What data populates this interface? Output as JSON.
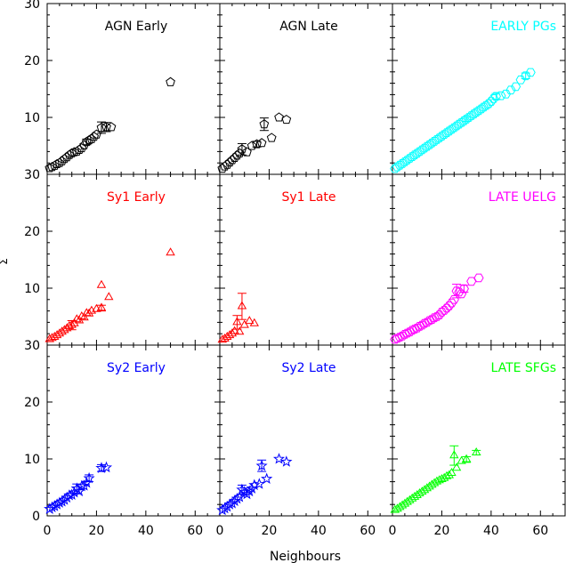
{
  "chart_data": {
    "type": "scatter",
    "layout": "3x3 grid of panels with shared axes",
    "xlabel": "Neighbours",
    "ylabel": "Σ",
    "xlim": [
      0,
      70
    ],
    "ylim": [
      0,
      30
    ],
    "xticks": [
      0,
      20,
      40,
      60
    ],
    "yticks": [
      0,
      10,
      20,
      30
    ],
    "grid": false,
    "panels": [
      {
        "label": "AGN Early",
        "color": "#000000",
        "marker": "pentagon",
        "label_align": "center",
        "points": [
          [
            1,
            1.1
          ],
          [
            2,
            1.3
          ],
          [
            3,
            1.5
          ],
          [
            4,
            1.8
          ],
          [
            5,
            2.0
          ],
          [
            6,
            2.3
          ],
          [
            7,
            2.7
          ],
          [
            8,
            3.0
          ],
          [
            9,
            3.4
          ],
          [
            10,
            3.7
          ],
          [
            11,
            3.9
          ],
          [
            12,
            4.0
          ],
          [
            13,
            4.3
          ],
          [
            14,
            4.6
          ],
          [
            15,
            5.1
          ],
          [
            16,
            5.7
          ],
          [
            17,
            6.0
          ],
          [
            18,
            6.2
          ],
          [
            19,
            6.6
          ],
          [
            20,
            7.0
          ],
          [
            22,
            8.2
          ],
          [
            24,
            8.3
          ],
          [
            26,
            8.3
          ],
          [
            50,
            16.2
          ]
        ],
        "errorbars": [
          [
            22,
            8.2,
            1.0
          ],
          [
            24,
            8.3,
            0.8
          ],
          [
            16,
            5.7,
            0.5
          ]
        ]
      },
      {
        "label": "AGN Late",
        "color": "#000000",
        "marker": "pentagon",
        "label_align": "center",
        "points": [
          [
            1,
            1.0
          ],
          [
            2,
            1.4
          ],
          [
            3,
            1.7
          ],
          [
            4,
            2.1
          ],
          [
            5,
            2.5
          ],
          [
            6,
            2.9
          ],
          [
            7,
            3.3
          ],
          [
            8,
            3.7
          ],
          [
            9,
            4.4
          ],
          [
            11,
            3.9
          ],
          [
            13,
            5.0
          ],
          [
            15,
            5.3
          ],
          [
            17,
            5.5
          ],
          [
            18,
            8.8
          ],
          [
            21,
            6.4
          ],
          [
            24,
            10.0
          ],
          [
            27,
            9.6
          ]
        ],
        "errorbars": [
          [
            9,
            4.4,
            1.0
          ],
          [
            18,
            8.8,
            1.1
          ],
          [
            15,
            5.3,
            0.5
          ]
        ]
      },
      {
        "label": "EARLY PGs",
        "color": "#00ffff",
        "marker": "hexagon",
        "label_align": "right",
        "points": [
          [
            1,
            1
          ],
          [
            2,
            1.3
          ],
          [
            3,
            1.6
          ],
          [
            4,
            1.9
          ],
          [
            5,
            2.2
          ],
          [
            6,
            2.5
          ],
          [
            7,
            2.8
          ],
          [
            8,
            3.1
          ],
          [
            9,
            3.4
          ],
          [
            10,
            3.7
          ],
          [
            11,
            4.0
          ],
          [
            12,
            4.3
          ],
          [
            13,
            4.6
          ],
          [
            14,
            4.9
          ],
          [
            15,
            5.2
          ],
          [
            16,
            5.5
          ],
          [
            17,
            5.8
          ],
          [
            18,
            6.1
          ],
          [
            19,
            6.4
          ],
          [
            20,
            6.7
          ],
          [
            21,
            7.0
          ],
          [
            22,
            7.3
          ],
          [
            23,
            7.6
          ],
          [
            24,
            7.9
          ],
          [
            25,
            8.2
          ],
          [
            26,
            8.5
          ],
          [
            27,
            8.8
          ],
          [
            28,
            9.1
          ],
          [
            29,
            9.4
          ],
          [
            30,
            9.7
          ],
          [
            31,
            10.0
          ],
          [
            32,
            10.3
          ],
          [
            33,
            10.6
          ],
          [
            34,
            10.9
          ],
          [
            35,
            11.2
          ],
          [
            36,
            11.5
          ],
          [
            37,
            11.8
          ],
          [
            38,
            12.1
          ],
          [
            39,
            12.4
          ],
          [
            40,
            12.8
          ],
          [
            41,
            13.3
          ],
          [
            42,
            13.7
          ],
          [
            44,
            13.8
          ],
          [
            46,
            14.1
          ],
          [
            48,
            14.8
          ],
          [
            50,
            15.4
          ],
          [
            52,
            16.6
          ],
          [
            54,
            17.3
          ],
          [
            56,
            17.9
          ]
        ],
        "errorbars": [
          [
            42,
            13.7,
            0.5
          ],
          [
            54,
            17.3,
            0.5
          ],
          [
            30,
            9.7,
            0.4
          ]
        ]
      },
      {
        "label": "Sy1 Early",
        "color": "#ff0000",
        "marker": "triangle",
        "label_align": "center",
        "points": [
          [
            1,
            1.0
          ],
          [
            2,
            1.2
          ],
          [
            3,
            1.4
          ],
          [
            4,
            1.7
          ],
          [
            5,
            2.0
          ],
          [
            6,
            2.3
          ],
          [
            7,
            2.6
          ],
          [
            8,
            2.9
          ],
          [
            9,
            3.3
          ],
          [
            10,
            3.5
          ],
          [
            11,
            3.8
          ],
          [
            12,
            4.5
          ],
          [
            13,
            4.3
          ],
          [
            14,
            5.0
          ],
          [
            15,
            4.8
          ],
          [
            16,
            5.6
          ],
          [
            17,
            5.5
          ],
          [
            18,
            6.0
          ],
          [
            20,
            6.3
          ],
          [
            22,
            10.5
          ],
          [
            22,
            6.5
          ],
          [
            25,
            8.4
          ],
          [
            50,
            16.2
          ]
        ],
        "errorbars": [
          [
            10,
            3.5,
            0.8
          ],
          [
            22,
            6.5,
            0.5
          ]
        ]
      },
      {
        "label": "Sy1 Late",
        "color": "#ff0000",
        "marker": "triangle",
        "label_align": "center",
        "points": [
          [
            1,
            0.9
          ],
          [
            2,
            1.1
          ],
          [
            3,
            1.4
          ],
          [
            4,
            1.7
          ],
          [
            5,
            2.0
          ],
          [
            6,
            2.4
          ],
          [
            7,
            4.0
          ],
          [
            8,
            2.3
          ],
          [
            9,
            6.8
          ],
          [
            10,
            3.5
          ],
          [
            12,
            4.2
          ],
          [
            14,
            3.8
          ]
        ],
        "errorbars": [
          [
            9,
            6.8,
            2.3
          ],
          [
            7,
            4.0,
            1.2
          ]
        ]
      },
      {
        "label": "LATE UELG",
        "color": "#ff00ff",
        "marker": "hexagon",
        "label_align": "right",
        "points": [
          [
            1,
            1
          ],
          [
            2,
            1.2
          ],
          [
            3,
            1.4
          ],
          [
            4,
            1.6
          ],
          [
            5,
            1.9
          ],
          [
            6,
            2.1
          ],
          [
            7,
            2.3
          ],
          [
            8,
            2.6
          ],
          [
            9,
            2.8
          ],
          [
            10,
            3.0
          ],
          [
            11,
            3.3
          ],
          [
            12,
            3.5
          ],
          [
            13,
            3.8
          ],
          [
            14,
            4.0
          ],
          [
            15,
            4.3
          ],
          [
            16,
            4.5
          ],
          [
            17,
            4.8
          ],
          [
            18,
            5.0
          ],
          [
            19,
            5.3
          ],
          [
            20,
            5.8
          ],
          [
            21,
            6.1
          ],
          [
            22,
            6.5
          ],
          [
            23,
            6.9
          ],
          [
            24,
            7.4
          ],
          [
            25,
            8.0
          ],
          [
            26,
            9.5
          ],
          [
            27,
            9.3
          ],
          [
            28,
            9.0
          ],
          [
            29,
            9.9
          ],
          [
            32,
            11.2
          ],
          [
            35,
            11.8
          ]
        ],
        "errorbars": [
          [
            26,
            9.5,
            1.2
          ],
          [
            29,
            9.9,
            0.6
          ]
        ]
      },
      {
        "label": "Sy2 Early",
        "color": "#0000ff",
        "marker": "star",
        "label_align": "center",
        "points": [
          [
            1,
            1.2
          ],
          [
            2,
            1.5
          ],
          [
            3,
            1.7
          ],
          [
            4,
            2.0
          ],
          [
            5,
            2.3
          ],
          [
            6,
            2.5
          ],
          [
            7,
            2.8
          ],
          [
            8,
            3.2
          ],
          [
            9,
            3.6
          ],
          [
            10,
            3.7
          ],
          [
            11,
            4.1
          ],
          [
            12,
            4.8
          ],
          [
            13,
            4.3
          ],
          [
            14,
            5.2
          ],
          [
            15,
            5.3
          ],
          [
            16,
            5.8
          ],
          [
            17,
            6.6
          ],
          [
            22,
            8.4
          ],
          [
            24,
            8.5
          ]
        ],
        "errorbars": [
          [
            12,
            4.8,
            0.8
          ],
          [
            17,
            6.6,
            0.6
          ],
          [
            22,
            8.4,
            0.6
          ]
        ]
      },
      {
        "label": "Sy2 Late",
        "color": "#0000ff",
        "marker": "star",
        "label_align": "center",
        "points": [
          [
            1,
            1.0
          ],
          [
            2,
            1.3
          ],
          [
            3,
            1.6
          ],
          [
            4,
            2.0
          ],
          [
            5,
            2.2
          ],
          [
            6,
            2.6
          ],
          [
            7,
            3.0
          ],
          [
            8,
            3.3
          ],
          [
            9,
            4.6
          ],
          [
            10,
            4.2
          ],
          [
            11,
            3.8
          ],
          [
            12,
            4.3
          ],
          [
            13,
            4.8
          ],
          [
            14,
            5.4
          ],
          [
            16,
            5.6
          ],
          [
            17,
            8.8
          ],
          [
            19,
            6.5
          ],
          [
            24,
            10.0
          ],
          [
            27,
            9.5
          ]
        ],
        "errorbars": [
          [
            17,
            8.8,
            1.0
          ],
          [
            9,
            4.6,
            0.8
          ]
        ]
      },
      {
        "label": "LATE SFGs",
        "color": "#00ff00",
        "marker": "triangle",
        "label_align": "right",
        "points": [
          [
            1,
            1
          ],
          [
            2,
            1.2
          ],
          [
            3,
            1.5
          ],
          [
            4,
            1.8
          ],
          [
            5,
            2.1
          ],
          [
            6,
            2.4
          ],
          [
            7,
            2.7
          ],
          [
            8,
            3.0
          ],
          [
            9,
            3.3
          ],
          [
            10,
            3.6
          ],
          [
            11,
            3.9
          ],
          [
            12,
            4.2
          ],
          [
            13,
            4.5
          ],
          [
            14,
            4.8
          ],
          [
            15,
            5.1
          ],
          [
            16,
            5.4
          ],
          [
            17,
            5.7
          ],
          [
            18,
            6.0
          ],
          [
            19,
            6.2
          ],
          [
            20,
            6.4
          ],
          [
            21,
            6.6
          ],
          [
            22,
            6.9
          ],
          [
            23,
            7.1
          ],
          [
            24,
            7.5
          ],
          [
            25,
            10.6
          ],
          [
            26,
            8.4
          ],
          [
            28,
            9.6
          ],
          [
            30,
            9.9
          ],
          [
            34,
            11.1
          ]
        ],
        "errorbars": [
          [
            25,
            10.6,
            1.7
          ],
          [
            30,
            9.9,
            0.5
          ],
          [
            34,
            11.1,
            0.4
          ]
        ]
      }
    ]
  }
}
